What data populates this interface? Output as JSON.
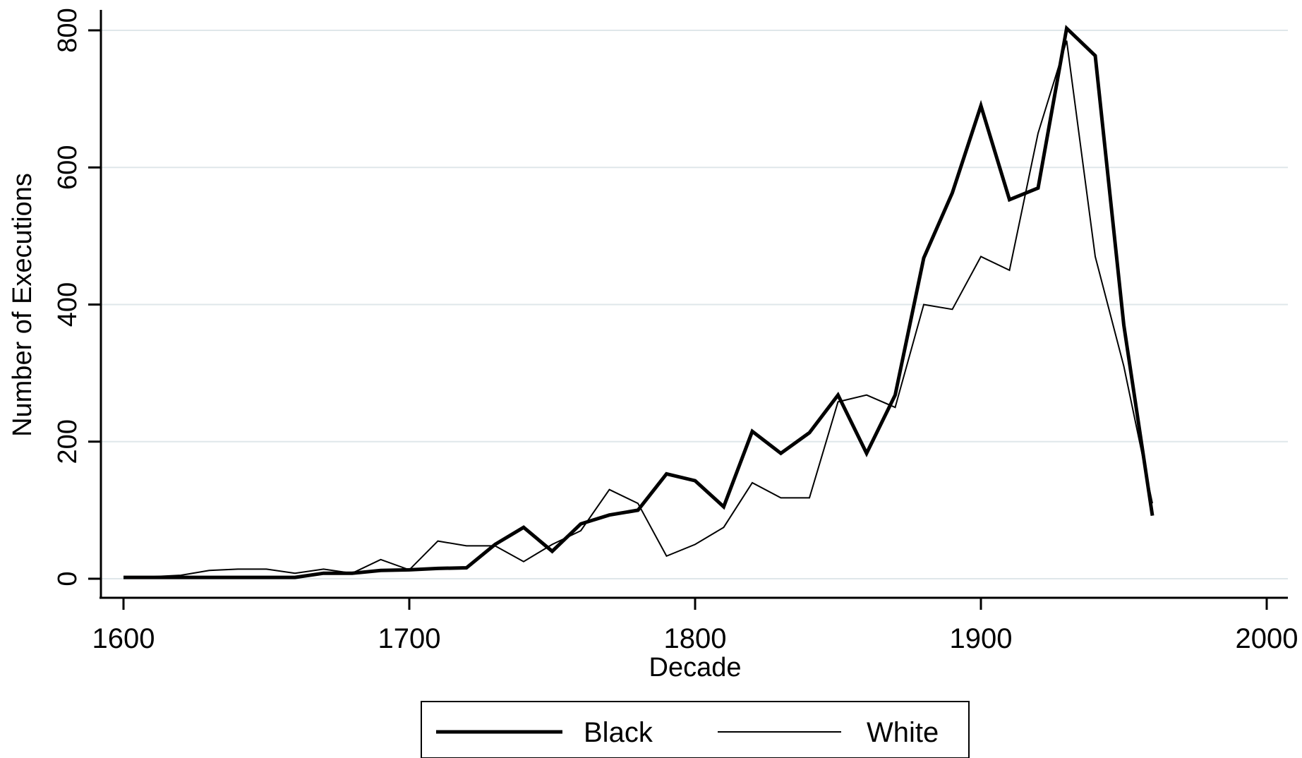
{
  "chart_data": {
    "type": "line",
    "title": "",
    "xlabel": "Decade",
    "ylabel": "Number of Executions",
    "xlim": [
      1600,
      2000
    ],
    "ylim": [
      0,
      800
    ],
    "x_ticks": [
      1600,
      1700,
      1800,
      1900,
      2000
    ],
    "y_ticks": [
      0,
      200,
      400,
      600,
      800
    ],
    "grid": "horizontal",
    "legend_position": "bottom",
    "series": [
      {
        "name": "Black",
        "style": "thick",
        "color": "#000000",
        "x": [
          1600,
          1610,
          1620,
          1630,
          1640,
          1650,
          1660,
          1670,
          1680,
          1690,
          1700,
          1710,
          1720,
          1730,
          1740,
          1750,
          1760,
          1770,
          1780,
          1790,
          1800,
          1810,
          1820,
          1830,
          1840,
          1850,
          1860,
          1870,
          1880,
          1890,
          1900,
          1910,
          1920,
          1930,
          1940,
          1950,
          1960
        ],
        "y": [
          2,
          2,
          2,
          2,
          2,
          2,
          2,
          8,
          8,
          12,
          13,
          15,
          16,
          50,
          75,
          40,
          80,
          93,
          100,
          153,
          143,
          105,
          215,
          183,
          213,
          268,
          183,
          268,
          468,
          563,
          690,
          553,
          570,
          803,
          763,
          370,
          92
        ]
      },
      {
        "name": "White",
        "style": "thin",
        "color": "#000000",
        "x": [
          1600,
          1610,
          1620,
          1630,
          1640,
          1650,
          1660,
          1670,
          1680,
          1690,
          1700,
          1710,
          1720,
          1730,
          1740,
          1750,
          1760,
          1770,
          1780,
          1790,
          1800,
          1810,
          1820,
          1830,
          1840,
          1850,
          1860,
          1870,
          1880,
          1890,
          1900,
          1910,
          1920,
          1930,
          1940,
          1950,
          1960
        ],
        "y": [
          3,
          3,
          5,
          12,
          14,
          14,
          8,
          14,
          8,
          28,
          13,
          55,
          48,
          48,
          25,
          50,
          70,
          130,
          110,
          33,
          50,
          75,
          140,
          118,
          118,
          258,
          268,
          250,
          400,
          393,
          470,
          450,
          650,
          785,
          470,
          310,
          110
        ]
      }
    ]
  }
}
